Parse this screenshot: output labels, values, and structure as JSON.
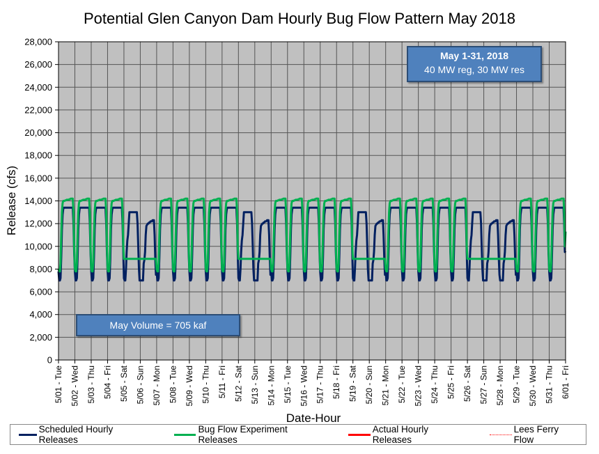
{
  "chart_data": {
    "type": "line",
    "title": "Potential Glen Canyon Dam Hourly Bug Flow Pattern May 2018",
    "xlabel": "Date-Hour",
    "ylabel": "Release (cfs)",
    "ylim": [
      0,
      28000
    ],
    "ytick_step": 2000,
    "yticks": [
      "0",
      "2,000",
      "4,000",
      "6,000",
      "8,000",
      "10,000",
      "12,000",
      "14,000",
      "16,000",
      "18,000",
      "20,000",
      "22,000",
      "24,000",
      "26,000",
      "28,000"
    ],
    "xticks": [
      "5/01 - Tue",
      "5/02 - Wed",
      "5/03 - Thu",
      "5/04 - Fri",
      "5/05 - Sat",
      "5/06 - Sun",
      "5/07 - Mon",
      "5/08 - Tue",
      "5/09 - Wed",
      "5/10 - Thu",
      "5/11 - Fri",
      "5/12 - Sat",
      "5/13 - Sun",
      "5/14 - Mon",
      "5/15 - Tue",
      "5/16 - Wed",
      "5/17 - Thu",
      "5/18 - Fri",
      "5/19 - Sat",
      "5/20 - Sun",
      "5/21 - Mon",
      "5/22 - Tue",
      "5/23 - Wed",
      "5/24 - Thu",
      "5/25 - Fri",
      "5/26 - Sat",
      "5/27 - Sun",
      "5/28 - Mon",
      "5/29 - Tue",
      "5/30 - Wed",
      "5/31 - Thu",
      "6/01 - Fri"
    ],
    "grid": true,
    "legend_position": "bottom",
    "days": 31,
    "series": [
      {
        "name": "Scheduled Hourly Releases",
        "color": "#002060",
        "day_types": [
          "wd",
          "wd",
          "wd",
          "wd",
          "sat",
          "sun",
          "wd",
          "wd",
          "wd",
          "wd",
          "wd",
          "sat",
          "sun",
          "wd",
          "wd",
          "wd",
          "wd",
          "wd",
          "sat",
          "sun",
          "wd",
          "wd",
          "wd",
          "wd",
          "wd",
          "sat",
          "sun",
          "sun",
          "wd",
          "wd",
          "wd"
        ],
        "hourly_profiles": {
          "wd": [
            7800,
            7000,
            7000,
            7200,
            9000,
            11500,
            12800,
            13300,
            13400,
            13400,
            13400,
            13400,
            13400,
            13400,
            13400,
            13400,
            13400,
            13400,
            13400,
            13400,
            13400,
            13400,
            12000,
            9500
          ],
          "sat": [
            7200,
            7000,
            7000,
            8000,
            9500,
            10500,
            11000,
            12000,
            13000,
            13000,
            13000,
            13000,
            13000,
            13000,
            13000,
            13000,
            13000,
            13000,
            13000,
            13000,
            12000,
            10000,
            8000,
            7000
          ],
          "sun": [
            7000,
            7000,
            7000,
            7000,
            7000,
            8500,
            8800,
            9500,
            11000,
            11800,
            11900,
            12000,
            12000,
            12100,
            12100,
            12200,
            12200,
            12200,
            12300,
            12300,
            12300,
            11000,
            9000,
            7500
          ]
        },
        "end_value": 9600
      },
      {
        "name": "Bug Flow Experiment Releases",
        "color": "#00b050",
        "day_types": [
          "wd",
          "wd",
          "wd",
          "wd",
          "flat",
          "flat",
          "wd",
          "wd",
          "wd",
          "wd",
          "wd",
          "flat",
          "flat",
          "wd",
          "wd",
          "wd",
          "wd",
          "wd",
          "flat",
          "flat",
          "wd",
          "wd",
          "wd",
          "wd",
          "wd",
          "flat",
          "flat",
          "flat",
          "wd",
          "wd",
          "wd"
        ],
        "hourly_profiles": {
          "wd": [
            8000,
            7800,
            7800,
            8500,
            11000,
            13000,
            13800,
            14000,
            14000,
            14000,
            14050,
            14050,
            14100,
            14100,
            14100,
            14100,
            14150,
            14150,
            14200,
            14200,
            14200,
            14200,
            13000,
            10000
          ],
          "flat": [
            8900,
            8900,
            8900,
            8900,
            8900,
            8900,
            8900,
            8900,
            8900,
            8900,
            8900,
            8900,
            8900,
            8900,
            8900,
            8900,
            8900,
            8900,
            8900,
            8900,
            8900,
            8900,
            8900,
            8900
          ]
        },
        "end_value": 11300
      },
      {
        "name": "Actual Hourly Releases",
        "color": "#ff0000",
        "values": []
      },
      {
        "name": "Lees Ferry Flow",
        "color": "#ff0000",
        "values": []
      }
    ],
    "annotations": {
      "period_title": "May 1-31, 2018",
      "period_subtitle": "40 MW reg, 30 MW res",
      "volume": "May Volume = 705 kaf"
    }
  }
}
